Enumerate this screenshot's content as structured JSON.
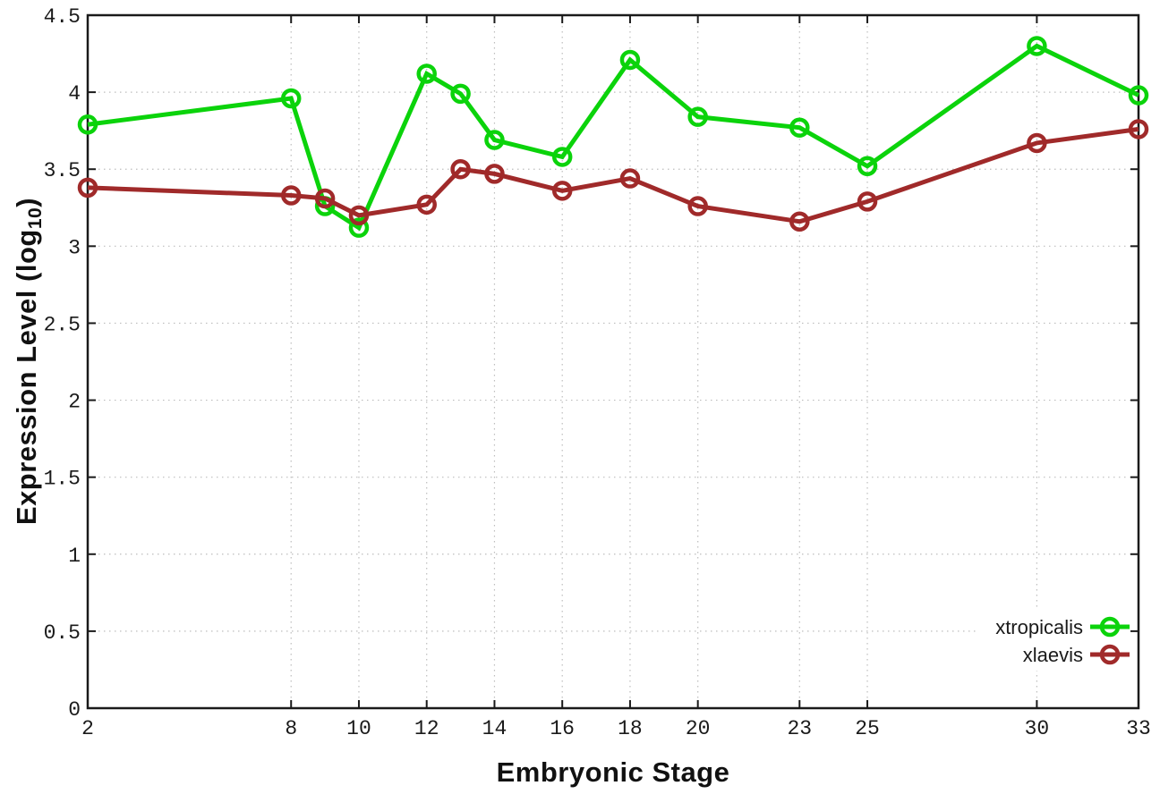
{
  "chart_data": {
    "type": "line",
    "title": "",
    "xlabel": "Embryonic Stage",
    "ylabel": "Expression Level (log10)",
    "x": [
      2,
      8,
      9,
      10,
      12,
      13,
      14,
      16,
      18,
      20,
      23,
      25,
      30,
      33
    ],
    "series": [
      {
        "id": "xtropicalis",
        "name": "xtropicalis",
        "color": "#0bd30b",
        "marker": "open-circle",
        "values": [
          3.79,
          3.96,
          3.26,
          3.12,
          4.12,
          3.99,
          3.69,
          3.58,
          4.21,
          3.84,
          3.77,
          3.52,
          4.3,
          3.98
        ]
      },
      {
        "id": "xlaevis",
        "name": "xlaevis",
        "color": "#a02a2a",
        "marker": "open-circle",
        "values": [
          3.38,
          3.33,
          3.31,
          3.2,
          3.27,
          3.5,
          3.47,
          3.36,
          3.44,
          3.26,
          3.16,
          3.29,
          3.67,
          3.76
        ]
      }
    ],
    "x_ticks": [
      2,
      8,
      10,
      12,
      14,
      16,
      18,
      20,
      23,
      25,
      30,
      33
    ],
    "x_tick_labels": [
      "2",
      "8",
      "10",
      "12",
      "14",
      "16",
      "18",
      "20",
      "23",
      "25",
      "30",
      "33"
    ],
    "y_ticks": [
      0,
      0.5,
      1,
      1.5,
      2,
      2.5,
      3,
      3.5,
      4,
      4.5
    ],
    "y_tick_labels": [
      "0",
      "0.5",
      "1",
      "1.5",
      "2",
      "2.5",
      "3",
      "3.5",
      "4",
      "4.5"
    ],
    "xlim": [
      2,
      33
    ],
    "ylim": [
      0,
      4.5
    ],
    "grid": true,
    "grid_style": "dotted",
    "legend_position": "bottom-right"
  },
  "axes": {
    "x": {
      "title": "Embryonic Stage"
    },
    "y": {
      "title_main": "Expression Level (log",
      "title_sub": "10",
      "title_end": ")"
    }
  },
  "colors": {
    "background": "#ffffff",
    "axis": "#1a1a1a",
    "grid": "#bdbdbd",
    "tick_text": "#1a1a1a",
    "xtropicalis": "#0bd30b",
    "xlaevis": "#a02a2a"
  }
}
